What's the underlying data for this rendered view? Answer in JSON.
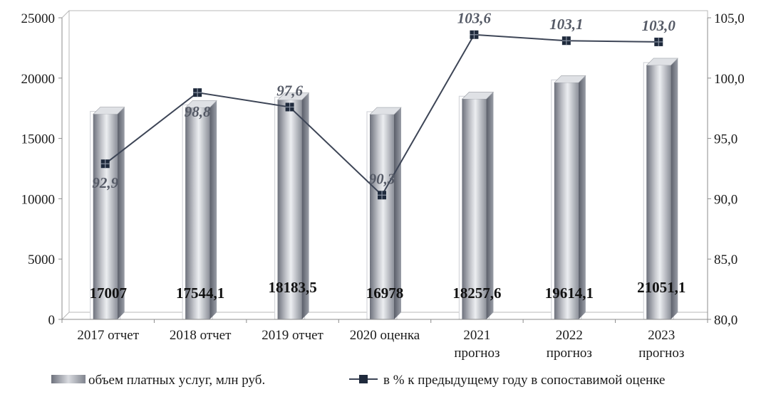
{
  "chart_data": {
    "type": "bar",
    "categories": [
      [
        "2017 отчет"
      ],
      [
        "2018 отчет"
      ],
      [
        "2019 отчет"
      ],
      [
        "2020 оценка"
      ],
      [
        "2021",
        "прогноз"
      ],
      [
        "2022",
        "прогноз"
      ],
      [
        "2023",
        "прогноз"
      ]
    ],
    "series": [
      {
        "name": "объем платных услуг,  млн руб.",
        "type": "bar",
        "axis": "left",
        "values": [
          17007,
          17544.1,
          18183.5,
          16978,
          18257.6,
          19614.1,
          21051.1
        ],
        "labels": [
          "17007",
          "17544,1",
          "18183,5",
          "16978",
          "18257,6",
          "19614,1",
          "21051,1"
        ]
      },
      {
        "name": "в % к предыдущему  году в сопоставимой оценке",
        "type": "line",
        "axis": "right",
        "values": [
          92.9,
          98.8,
          97.6,
          90.3,
          103.6,
          103.1,
          103.0
        ],
        "labels": [
          "92,9",
          "98,8",
          "97,6",
          "90,3",
          "103,6",
          "103,1",
          "103,0"
        ]
      }
    ],
    "y_left": {
      "min": 0,
      "max": 25000,
      "step": 5000,
      "ticks": [
        "0",
        "5000",
        "10000",
        "15000",
        "20000",
        "25000"
      ]
    },
    "y_right": {
      "min": 80,
      "max": 105,
      "step": 5,
      "ticks": [
        "80,0",
        "85,0",
        "90,0",
        "95,0",
        "100,0",
        "105,0"
      ]
    },
    "grid": false,
    "legend": "bottom",
    "colors": {
      "bar_light": "#f2f3f5",
      "bar_mid": "#a9acb4",
      "bar_dark": "#5f6370",
      "line": "#3d4556",
      "marker": "#1f2a3c",
      "axis": "#8c8c8c"
    }
  }
}
